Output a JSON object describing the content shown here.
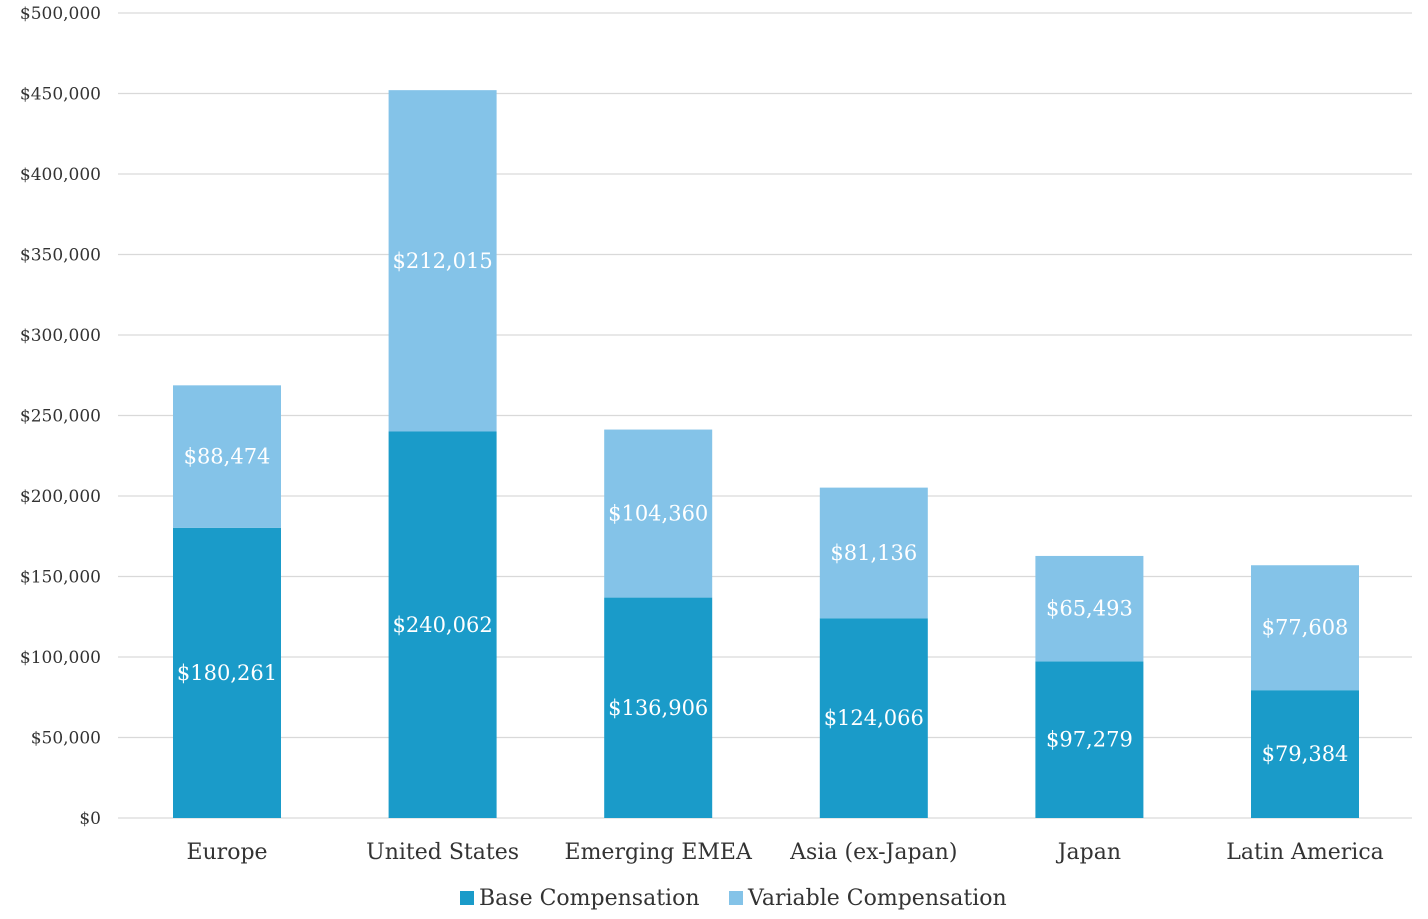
{
  "chart_data": {
    "type": "bar",
    "stacked": true,
    "categories": [
      "Europe",
      "United States",
      "Emerging EMEA",
      "Asia (ex-Japan)",
      "Japan",
      "Latin America"
    ],
    "series": [
      {
        "name": "Base Compensation",
        "color": "#1a9bc9",
        "values": [
          180261,
          240062,
          136906,
          124066,
          97279,
          79384
        ],
        "labels": [
          "$180,261",
          "$240,062",
          "$136,906",
          "$124,066",
          "$97,279",
          "$79,384"
        ]
      },
      {
        "name": "Variable Compensation",
        "color": "#84c3e8",
        "values": [
          88474,
          212015,
          104360,
          81136,
          65493,
          77608
        ],
        "labels": [
          "$88,474",
          "$212,015",
          "$104,360",
          "$81,136",
          "$65,493",
          "$77,608"
        ]
      }
    ],
    "y_ticks": [
      "$0",
      "$50,000",
      "$100,000",
      "$150,000",
      "$200,000",
      "$250,000",
      "$300,000",
      "$350,000",
      "$400,000",
      "$450,000",
      "$500,000"
    ],
    "ylim": [
      0,
      500000
    ],
    "grid": true,
    "gridline_color": "#d9d9d9",
    "legend_position": "bottom-center",
    "title": "",
    "xlabel": "",
    "ylabel": ""
  }
}
